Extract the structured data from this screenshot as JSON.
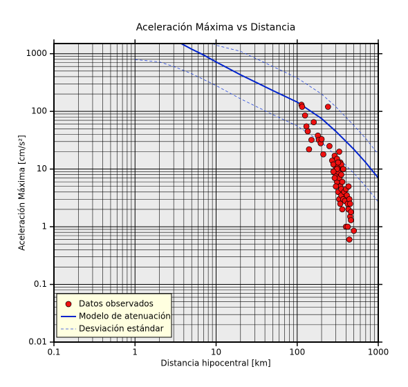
{
  "chart_data": {
    "type": "scatter",
    "title": "Aceleración Máxima vs Distancia",
    "x_label": "Distancia hipocentral [km]",
    "y_label": "Aceleración Máxima [cm/s²]",
    "xscale": "log",
    "yscale": "log",
    "xlim": [
      0.1,
      1000
    ],
    "ylim": [
      0.01,
      1500
    ],
    "xticks": [
      0.1,
      1,
      10,
      100,
      1000
    ],
    "yticks": [
      0.01,
      0.1,
      1,
      10,
      100,
      1000
    ],
    "xminorticks": [
      0.2,
      0.3,
      0.4,
      0.5,
      0.6,
      0.7,
      0.8,
      0.9,
      2,
      3,
      4,
      5,
      6,
      7,
      8,
      9,
      20,
      30,
      40,
      50,
      60,
      70,
      80,
      90,
      200,
      300,
      400,
      500,
      600,
      700,
      800,
      900
    ],
    "yminorticks": [
      0.02,
      0.03,
      0.04,
      0.05,
      0.06,
      0.07,
      0.08,
      0.09,
      0.2,
      0.3,
      0.4,
      0.5,
      0.6,
      0.7,
      0.8,
      0.9,
      2,
      3,
      4,
      5,
      6,
      7,
      8,
      9,
      20,
      30,
      40,
      50,
      60,
      70,
      80,
      90,
      200,
      300,
      400,
      500,
      600,
      700,
      800,
      900
    ],
    "grid": true,
    "legend": "lower-left",
    "series": [
      {
        "name": "Datos observados",
        "type": "scatter",
        "color": "#ee1111",
        "x": [
          113,
          115,
          125,
          130,
          135,
          140,
          150,
          160,
          180,
          185,
          195,
          200,
          210,
          240,
          250,
          270,
          280,
          290,
          300,
          300,
          310,
          310,
          320,
          320,
          320,
          330,
          330,
          330,
          340,
          340,
          340,
          350,
          350,
          350,
          350,
          360,
          360,
          370,
          370,
          380,
          390,
          400,
          400,
          410,
          420,
          420,
          430,
          430,
          440,
          440,
          450,
          450,
          460,
          460,
          500,
          290,
          300,
          310,
          320,
          280
        ],
        "y": [
          130,
          120,
          85,
          55,
          45,
          22,
          32,
          65,
          38,
          32,
          28,
          33,
          18,
          120,
          25,
          14,
          12,
          17,
          10,
          8,
          15,
          6,
          11,
          9,
          4,
          20,
          7,
          3,
          13,
          5,
          2.5,
          12,
          8,
          4.5,
          3.5,
          6,
          2,
          10,
          3,
          4,
          2.8,
          1,
          4.5,
          3.5,
          2.5,
          1,
          5,
          2,
          3,
          0.6,
          2.5,
          1.5,
          1.8,
          1.3,
          0.85,
          7,
          5,
          10,
          13,
          9
        ]
      },
      {
        "name": "Modelo de atenuación",
        "type": "line",
        "color": "#0022cc",
        "x": [
          3.7,
          5,
          7,
          10,
          20,
          50,
          100,
          200,
          300,
          500,
          700,
          1000
        ],
        "y": [
          1500,
          1200,
          950,
          720,
          430,
          230,
          145,
          75,
          45,
          22,
          13,
          7
        ]
      },
      {
        "name": "Desviación estándar",
        "type": "line",
        "color": "#2244dd",
        "dashed": true,
        "lines": [
          {
            "x": [
              9,
              10,
              20,
              50,
              100,
              200,
              300,
              500,
              700,
              1000
            ],
            "y": [
              1500,
              1400,
              1100,
              600,
              380,
              200,
              120,
              57,
              34,
              18
            ]
          },
          {
            "x": [
              1,
              2,
              3,
              5,
              10,
              20,
              50,
              100,
              200,
              300,
              500,
              700,
              1000
            ],
            "y": [
              790,
              720,
              600,
              450,
              280,
              165,
              88,
              56,
              29,
              17,
              8.5,
              5,
              2.7
            ]
          }
        ]
      }
    ]
  }
}
